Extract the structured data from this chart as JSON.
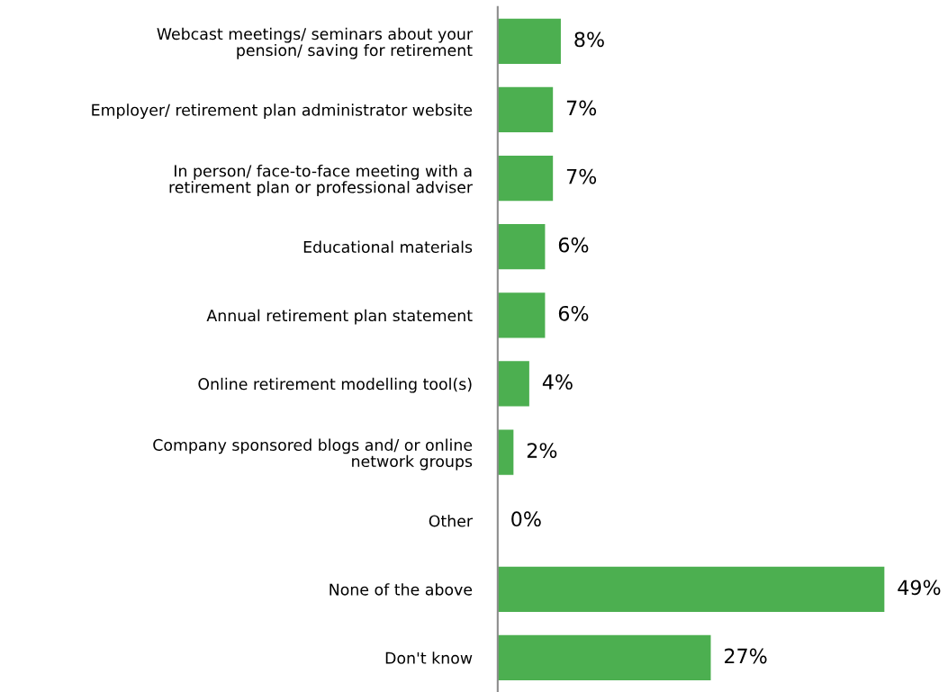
{
  "chart_data": {
    "type": "bar",
    "orientation": "horizontal",
    "categories": [
      "Webcast meetings/ seminars about your\npension/ saving for retirement",
      "Employer/ retirement plan administrator website",
      "In person/ face-to-face meeting with a\nretirement plan or professional adviser",
      "Educational materials",
      "Annual retirement plan statement",
      "Online retirement modelling tool(s)",
      "Company sponsored blogs and/ or online\nnetwork groups",
      "Other",
      "None of the above",
      "Don't know"
    ],
    "values": [
      8,
      7,
      7,
      6,
      6,
      4,
      2,
      0,
      49,
      27
    ],
    "value_labels": [
      "8%",
      "7%",
      "7%",
      "6%",
      "6%",
      "4%",
      "2%",
      "0%",
      "49%",
      "27%"
    ],
    "color": "#4caf50",
    "grid": false,
    "legend": false
  }
}
